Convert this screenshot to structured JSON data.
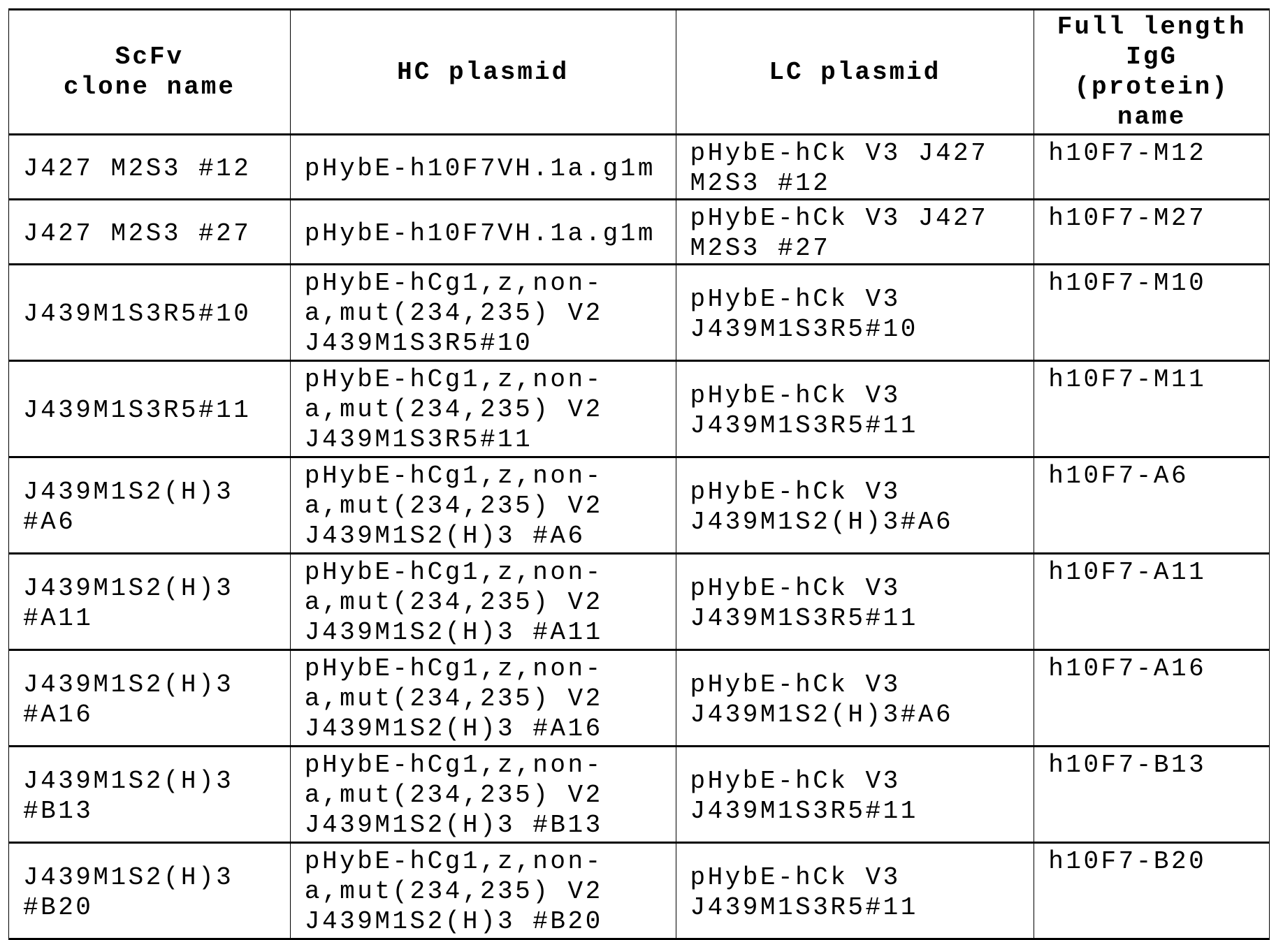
{
  "table": {
    "headers": [
      "ScFv\nclone name",
      "HC plasmid",
      "LC plasmid",
      "Full length\nIgG\n(protein)\nname"
    ],
    "rows": [
      [
        "J427 M2S3 #12",
        "pHybE-h10F7VH.1a.g1m",
        "pHybE-hCk V3 J427\nM2S3 #12",
        "h10F7-M12"
      ],
      [
        "J427 M2S3 #27",
        "pHybE-h10F7VH.1a.g1m",
        "pHybE-hCk V3 J427\nM2S3 #27",
        "h10F7-M27"
      ],
      [
        "J439M1S3R5#10",
        "pHybE-hCg1,z,non-\na,mut(234,235) V2\nJ439M1S3R5#10",
        "pHybE-hCk V3\nJ439M1S3R5#10",
        "h10F7-M10"
      ],
      [
        "J439M1S3R5#11",
        "pHybE-hCg1,z,non-\na,mut(234,235) V2\nJ439M1S3R5#11",
        "pHybE-hCk V3\nJ439M1S3R5#11",
        "h10F7-M11"
      ],
      [
        "J439M1S2(H)3\n#A6",
        "pHybE-hCg1,z,non-\na,mut(234,235) V2\nJ439M1S2(H)3 #A6",
        "pHybE-hCk V3\nJ439M1S2(H)3#A6",
        "h10F7-A6"
      ],
      [
        "J439M1S2(H)3\n#A11",
        "pHybE-hCg1,z,non-\na,mut(234,235) V2\nJ439M1S2(H)3 #A11",
        "pHybE-hCk V3\nJ439M1S3R5#11",
        "h10F7-A11"
      ],
      [
        "J439M1S2(H)3\n#A16",
        "pHybE-hCg1,z,non-\na,mut(234,235) V2\nJ439M1S2(H)3 #A16",
        "pHybE-hCk V3\nJ439M1S2(H)3#A6",
        "h10F7-A16"
      ],
      [
        "J439M1S2(H)3\n#B13",
        "pHybE-hCg1,z,non-\na,mut(234,235) V2\nJ439M1S2(H)3 #B13",
        "pHybE-hCk V3\nJ439M1S3R5#11",
        "h10F7-B13"
      ],
      [
        "J439M1S2(H)3\n#B20",
        "pHybE-hCg1,z,non-\na,mut(234,235) V2\nJ439M1S2(H)3 #B20",
        "pHybE-hCk V3\nJ439M1S3R5#11",
        "h10F7-B20"
      ]
    ]
  }
}
